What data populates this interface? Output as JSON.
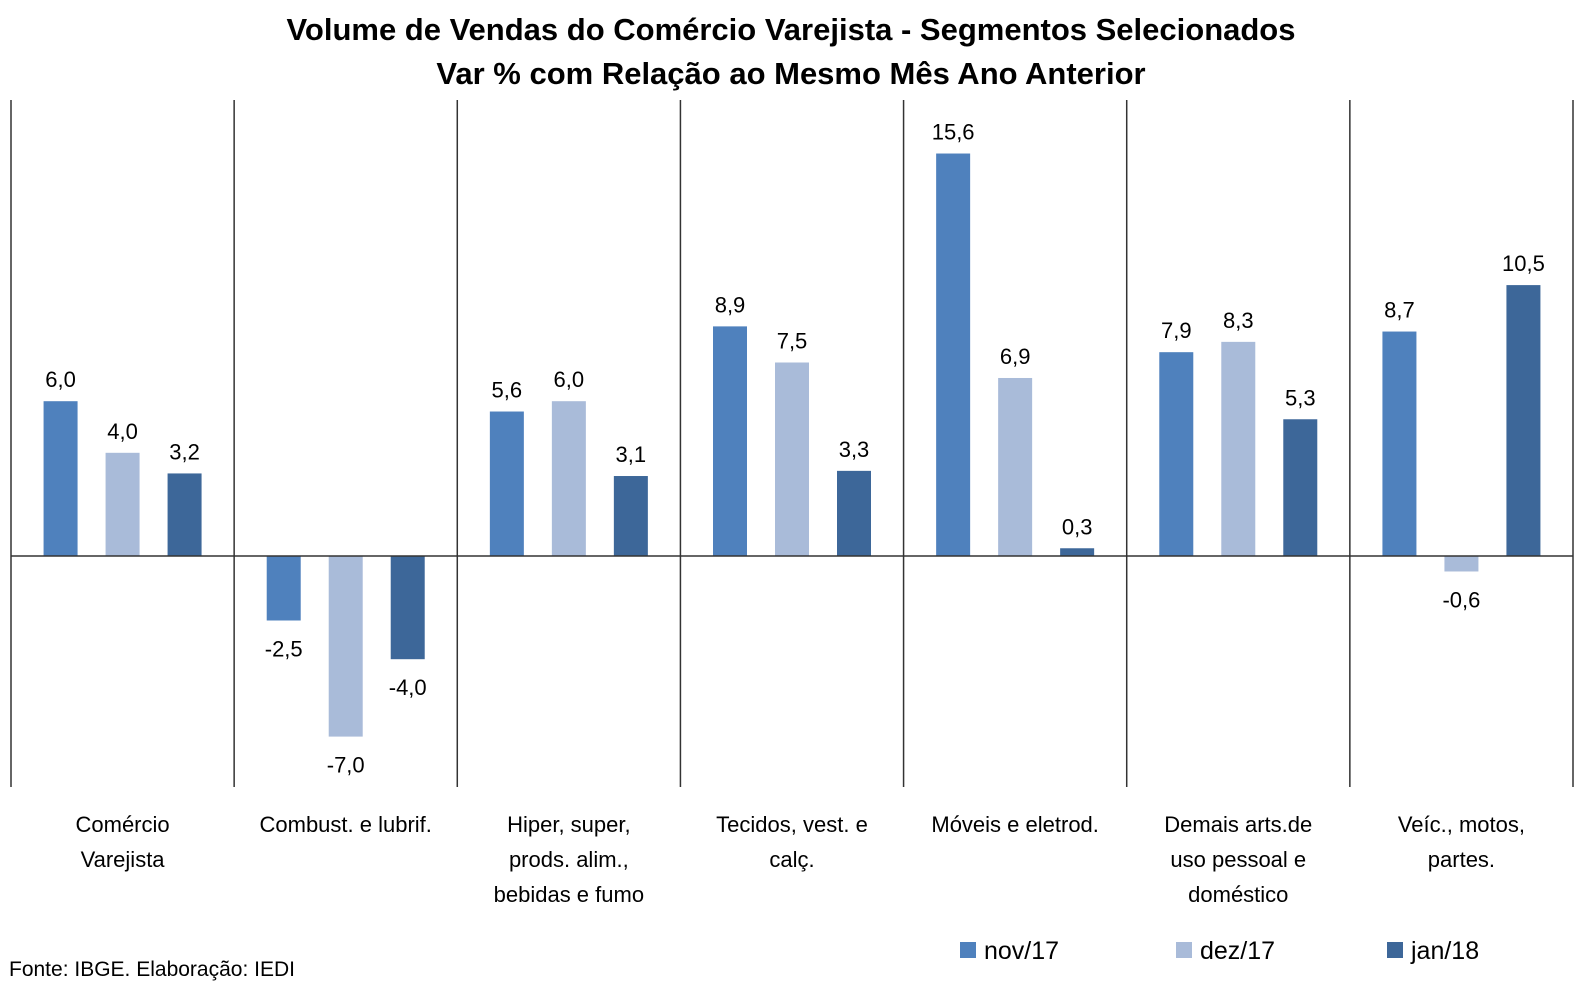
{
  "chart_data": {
    "type": "bar",
    "title": "Volume de Vendas do Comércio Varejista - Segmentos Selecionados",
    "subtitle": "Var % com Relação ao Mesmo Mês Ano Anterior",
    "categories": [
      [
        "Comércio",
        "Varejista"
      ],
      [
        "Combust. e lubrif."
      ],
      [
        "Hiper, super,",
        "prods. alim.,",
        "bebidas e fumo"
      ],
      [
        "Tecidos, vest. e",
        "calç."
      ],
      [
        "Móveis e eletrod."
      ],
      [
        "Demais arts.de",
        "uso pessoal e",
        "doméstico"
      ],
      [
        "Veíc., motos,",
        "partes."
      ]
    ],
    "series": [
      {
        "name": "nov/17",
        "color": "#4f81bd",
        "values": [
          6.0,
          -2.5,
          5.6,
          8.9,
          15.6,
          7.9,
          8.7
        ],
        "labels": [
          "6,0",
          "-2,5",
          "5,6",
          "8,9",
          "15,6",
          "7,9",
          "8,7"
        ]
      },
      {
        "name": "dez/17",
        "color": "#a9bbd9",
        "values": [
          4.0,
          -7.0,
          6.0,
          7.5,
          6.9,
          8.3,
          -0.6
        ],
        "labels": [
          "4,0",
          "-7,0",
          "6,0",
          "7,5",
          "6,9",
          "8,3",
          "-0,6"
        ]
      },
      {
        "name": "jan/18",
        "color": "#3d6799",
        "values": [
          3.2,
          -4.0,
          3.1,
          3.3,
          0.3,
          5.3,
          10.5
        ],
        "labels": [
          "3,2",
          "-4,0",
          "3,1",
          "3,3",
          "0,3",
          "5,3",
          "10,5"
        ]
      }
    ],
    "ylim": [
      -9,
      17.6
    ],
    "legend_position": "bottom-right",
    "source": "Fonte: IBGE. Elaboração: IEDI"
  }
}
